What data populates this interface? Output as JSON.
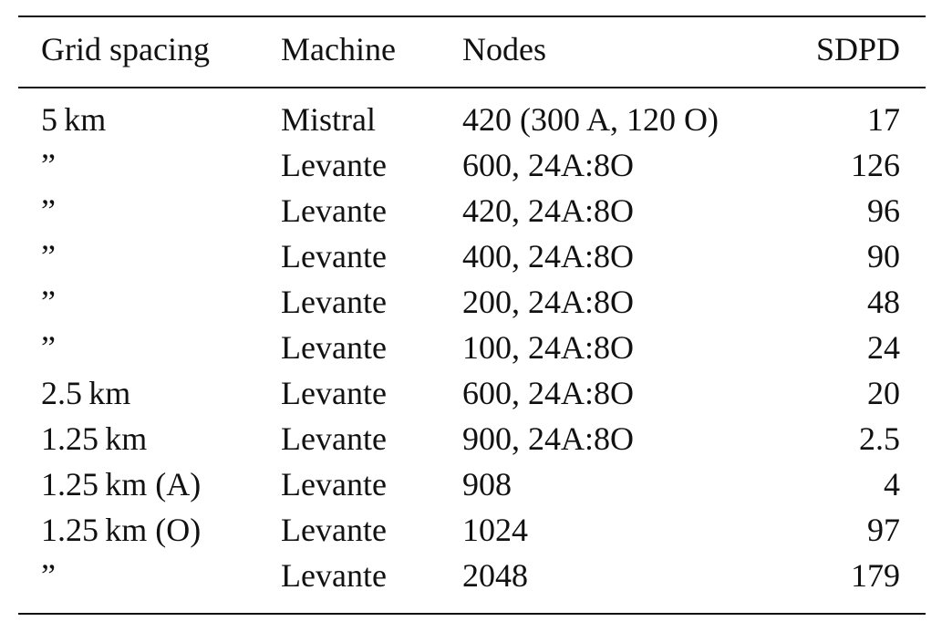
{
  "table": {
    "header": [
      "Grid spacing",
      "Machine",
      "Nodes",
      "SDPD"
    ],
    "rows": [
      [
        "5 km",
        "Mistral",
        "420 (300 A, 120 O)",
        "17"
      ],
      [
        "”",
        "Levante",
        "600, 24A:8O",
        "126"
      ],
      [
        "”",
        "Levante",
        "420, 24A:8O",
        "96"
      ],
      [
        "”",
        "Levante",
        "400, 24A:8O",
        "90"
      ],
      [
        "”",
        "Levante",
        "200, 24A:8O",
        "48"
      ],
      [
        "”",
        "Levante",
        "100, 24A:8O",
        "24"
      ],
      [
        "2.5 km",
        "Levante",
        "600, 24A:8O",
        "20"
      ],
      [
        "1.25 km",
        "Levante",
        "900, 24A:8O",
        "2.5"
      ],
      [
        "1.25 km (A)",
        "Levante",
        "908",
        "4"
      ],
      [
        "1.25 km (O)",
        "Levante",
        "1024",
        "97"
      ],
      [
        "”",
        "Levante",
        "2048",
        "179"
      ]
    ]
  }
}
